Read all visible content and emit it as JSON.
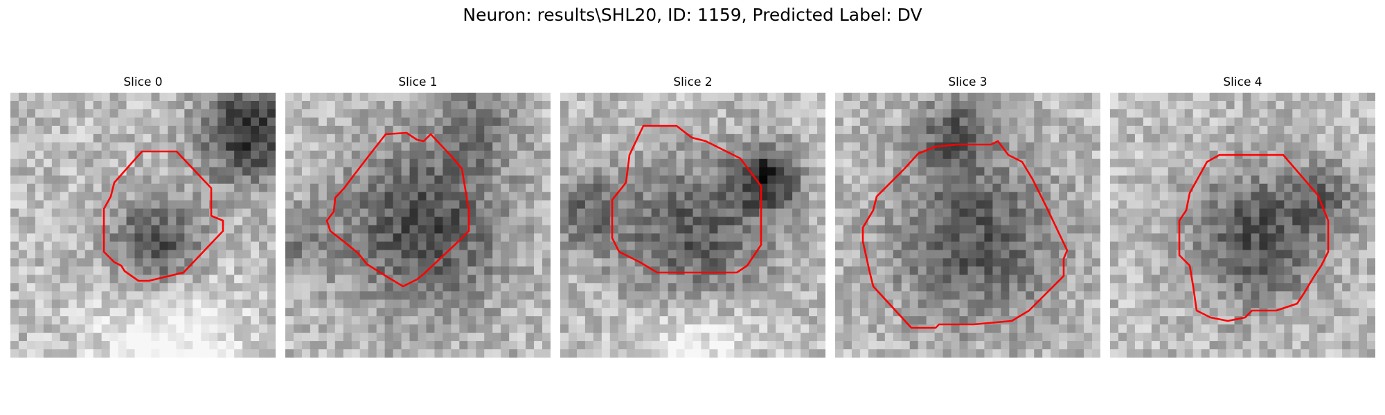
{
  "figure": {
    "title": "Neuron: results\\SHL20, ID: 1159, Predicted Label: DV"
  },
  "colors": {
    "contour": "#ff0000"
  },
  "panels": [
    {
      "title": "Slice 0",
      "blobs": [
        [
          0.55,
          0.57,
          0.18,
          -0.45
        ],
        [
          0.9,
          0.15,
          0.2,
          -0.55
        ],
        [
          0.6,
          1.0,
          0.3,
          0.3
        ]
      ]
    },
    {
      "title": "Slice 1",
      "blobs": [
        [
          0.52,
          0.5,
          0.33,
          -0.45
        ],
        [
          0.72,
          0.12,
          0.16,
          -0.25
        ],
        [
          0.05,
          0.55,
          0.12,
          -0.2
        ]
      ]
    },
    {
      "title": "Slice 2",
      "blobs": [
        [
          0.5,
          0.55,
          0.3,
          -0.4
        ],
        [
          0.78,
          0.32,
          0.13,
          -0.55
        ],
        [
          0.1,
          0.45,
          0.15,
          -0.3
        ],
        [
          0.5,
          0.95,
          0.25,
          0.25
        ]
      ]
    },
    {
      "title": "Slice 3",
      "blobs": [
        [
          0.52,
          0.55,
          0.33,
          -0.4
        ],
        [
          0.45,
          0.15,
          0.14,
          -0.35
        ]
      ]
    },
    {
      "title": "Slice 4",
      "blobs": [
        [
          0.55,
          0.55,
          0.26,
          -0.42
        ],
        [
          0.8,
          0.4,
          0.14,
          -0.25
        ]
      ]
    }
  ]
}
